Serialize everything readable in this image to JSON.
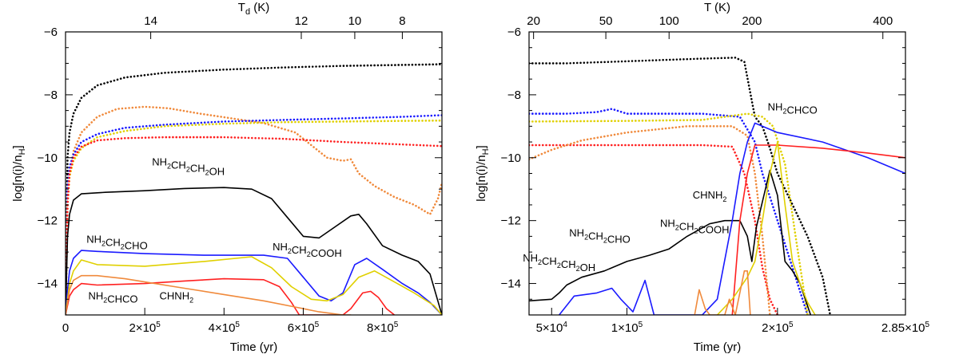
{
  "chart_data": [
    {
      "type": "line",
      "panel": "left",
      "xlabel": "Time (yr)",
      "ylabel": "log[n(i)/n_H]",
      "top_axis_label": "T_d (K)",
      "top_ticks": [
        {
          "x": 215000,
          "label": "14"
        },
        {
          "x": 595000,
          "label": "12"
        },
        {
          "x": 730000,
          "label": "10"
        },
        {
          "x": 850000,
          "label": "8"
        }
      ],
      "xlim": [
        0,
        950000
      ],
      "ylim": [
        -15,
        -6
      ],
      "x_ticks": [
        {
          "x": 0,
          "label": "0"
        },
        {
          "x": 200000,
          "label": "2×10",
          "exp": "5"
        },
        {
          "x": 400000,
          "label": "4×10",
          "exp": "5"
        },
        {
          "x": 600000,
          "label": "6×10",
          "exp": "5"
        },
        {
          "x": 800000,
          "label": "8×10",
          "exp": "5"
        }
      ],
      "y_ticks": [
        {
          "y": -6,
          "label": "−6"
        },
        {
          "y": -8,
          "label": "−8"
        },
        {
          "y": -10,
          "label": "−10"
        },
        {
          "y": -12,
          "label": "−12"
        },
        {
          "y": -14,
          "label": "−14"
        }
      ],
      "series": [
        {
          "color": "#000000",
          "style": "dotted",
          "x": [
            0,
            5000,
            10000,
            20000,
            40000,
            80000,
            150000,
            250000,
            400000,
            550000,
            700000,
            850000,
            950000
          ],
          "y": [
            -15,
            -10,
            -9.2,
            -8.6,
            -8.1,
            -7.7,
            -7.45,
            -7.3,
            -7.2,
            -7.13,
            -7.08,
            -7.05,
            -7.03
          ]
        },
        {
          "color": "#f08a3c",
          "style": "dotted",
          "x": [
            0,
            5000,
            10000,
            20000,
            40000,
            80000,
            130000,
            200000,
            260000,
            340000,
            420000,
            500000,
            580000,
            620000,
            660000,
            700000,
            720000,
            740000,
            780000,
            830000,
            880000,
            920000,
            940000,
            950000
          ],
          "y": [
            -15,
            -11.5,
            -10.6,
            -9.8,
            -9.2,
            -8.7,
            -8.45,
            -8.38,
            -8.43,
            -8.6,
            -8.75,
            -8.9,
            -9.2,
            -9.6,
            -10,
            -10.1,
            -10.05,
            -10.5,
            -10.9,
            -11.25,
            -11.5,
            -11.8,
            -11.3,
            -10.8
          ]
        },
        {
          "color": "#1a1aff",
          "style": "dotted",
          "x": [
            0,
            5000,
            10000,
            20000,
            40000,
            80000,
            150000,
            250000,
            400000,
            550000,
            700000,
            850000,
            950000
          ],
          "y": [
            -15,
            -11,
            -10.3,
            -9.9,
            -9.5,
            -9.25,
            -9.05,
            -8.95,
            -8.85,
            -8.8,
            -8.75,
            -8.7,
            -8.65
          ]
        },
        {
          "color": "#e0d000",
          "style": "dotted",
          "x": [
            0,
            5000,
            10000,
            20000,
            40000,
            80000,
            150000,
            250000,
            400000,
            550000,
            700000,
            850000,
            950000
          ],
          "y": [
            -15,
            -11.5,
            -10.6,
            -10.1,
            -9.7,
            -9.35,
            -9.15,
            -9.0,
            -8.92,
            -8.87,
            -8.85,
            -8.83,
            -8.82
          ]
        },
        {
          "color": "#ff2020",
          "style": "dotted",
          "x": [
            0,
            5000,
            10000,
            20000,
            40000,
            80000,
            150000,
            250000,
            400000,
            550000,
            700000,
            850000,
            950000
          ],
          "y": [
            -15,
            -11.5,
            -10.5,
            -10.0,
            -9.65,
            -9.45,
            -9.38,
            -9.35,
            -9.35,
            -9.4,
            -9.5,
            -9.58,
            -9.63
          ]
        },
        {
          "color": "#000000",
          "style": "solid",
          "x": [
            0,
            5000,
            10000,
            20000,
            40000,
            100000,
            200000,
            300000,
            400000,
            470000,
            520000,
            560000,
            600000,
            640000,
            680000,
            720000,
            740000,
            760000,
            800000,
            850000,
            890000,
            920000,
            950000
          ],
          "y": [
            -15,
            -12.5,
            -11.8,
            -11.35,
            -11.15,
            -11.1,
            -11.05,
            -10.98,
            -10.95,
            -11.0,
            -11.3,
            -11.9,
            -12.5,
            -12.55,
            -12.2,
            -11.85,
            -11.8,
            -12.1,
            -12.8,
            -13.1,
            -13.3,
            -13.7,
            -15
          ]
        },
        {
          "color": "#1a1aff",
          "style": "solid",
          "x": [
            0,
            5000,
            10000,
            20000,
            40000,
            80000,
            200000,
            350000,
            500000,
            560000,
            600000,
            640000,
            670000,
            700000,
            730000,
            760000,
            800000,
            850000,
            890000,
            920000,
            950000
          ],
          "y": [
            -15,
            -14.2,
            -13.6,
            -13.2,
            -12.95,
            -12.98,
            -13.05,
            -13.1,
            -13.1,
            -13.2,
            -13.8,
            -14.4,
            -14.55,
            -14.3,
            -13.4,
            -13.2,
            -13.55,
            -14.0,
            -14.3,
            -14.6,
            -15
          ]
        },
        {
          "color": "#e0d000",
          "style": "solid",
          "x": [
            0,
            5000,
            10000,
            20000,
            40000,
            80000,
            200000,
            350000,
            470000,
            520000,
            570000,
            620000,
            660000,
            700000,
            740000,
            780000,
            830000,
            880000,
            930000,
            950000
          ],
          "y": [
            -15,
            -14.5,
            -14.0,
            -13.6,
            -13.25,
            -13.4,
            -13.45,
            -13.3,
            -13.15,
            -13.5,
            -14.1,
            -14.5,
            -14.55,
            -14.35,
            -13.8,
            -13.6,
            -13.95,
            -14.3,
            -14.7,
            -15
          ]
        },
        {
          "color": "#ff2020",
          "style": "solid",
          "x": [
            0,
            5000,
            10000,
            20000,
            40000,
            80000,
            200000,
            300000,
            400000,
            500000,
            540000,
            570000,
            590000,
            700000,
            720000,
            750000,
            770000,
            790000,
            810000,
            830000
          ],
          "y": [
            -15,
            -14.7,
            -14.4,
            -14.2,
            -14.0,
            -14.05,
            -14.0,
            -13.92,
            -13.85,
            -13.88,
            -14.1,
            -14.6,
            -15,
            -15,
            -14.8,
            -14.3,
            -14.25,
            -14.45,
            -14.8,
            -15
          ]
        },
        {
          "color": "#f08a3c",
          "style": "solid",
          "x": [
            0,
            5000,
            10000,
            20000,
            40000,
            80000,
            150000,
            200000,
            300000,
            400000,
            500000,
            580000,
            640000,
            700000,
            720000
          ],
          "y": [
            -15,
            -14.6,
            -14.2,
            -13.9,
            -13.75,
            -13.75,
            -13.85,
            -13.95,
            -14.15,
            -14.35,
            -14.55,
            -14.75,
            -14.9,
            -15,
            -15
          ]
        }
      ],
      "annotations": [
        {
          "text": "NH₂CH₂CH₂OH",
          "x": 310000,
          "y": -10.25
        },
        {
          "text": "NH₂CH₂CHO",
          "x": 130000,
          "y": -12.7
        },
        {
          "text": "NH₂CH₂COOH",
          "x": 610000,
          "y": -12.95
        },
        {
          "text": "NH₂CHCO",
          "x": 120000,
          "y": -14.5
        },
        {
          "text": "CHNH₂",
          "x": 280000,
          "y": -14.5
        }
      ]
    },
    {
      "type": "line",
      "panel": "right",
      "xlabel": "Time (yr)",
      "ylabel": "log[n(i)/n_H]",
      "top_axis_label": "T (K)",
      "top_ticks": [
        {
          "x": 38000,
          "label": "20"
        },
        {
          "x": 86000,
          "label": "50"
        },
        {
          "x": 128000,
          "label": "100"
        },
        {
          "x": 183000,
          "label": "200"
        },
        {
          "x": 270000,
          "label": "400"
        }
      ],
      "xlim": [
        35000,
        285000
      ],
      "ylim": [
        -15,
        -6
      ],
      "x_ticks": [
        {
          "x": 50000,
          "label": "5×10",
          "exp": "4"
        },
        {
          "x": 100000,
          "label": "1×10",
          "exp": "5"
        },
        {
          "x": 200000,
          "label": "2×10",
          "exp": "5"
        },
        {
          "x": 285000,
          "label": "2.85×10",
          "exp": "5"
        }
      ],
      "y_ticks": [
        {
          "y": -6,
          "label": "−6"
        },
        {
          "y": -8,
          "label": "−8"
        },
        {
          "y": -10,
          "label": "−10"
        },
        {
          "y": -12,
          "label": "−12"
        },
        {
          "y": -14,
          "label": "−14"
        }
      ],
      "series": [
        {
          "color": "#000000",
          "style": "dotted",
          "x": [
            35000,
            60000,
            90000,
            120000,
            150000,
            172000,
            178000,
            185000,
            190000,
            195000,
            200000,
            210000,
            220000,
            230000,
            235000
          ],
          "y": [
            -7.0,
            -7.0,
            -6.95,
            -6.9,
            -6.85,
            -6.82,
            -6.95,
            -8.7,
            -9.0,
            -9.7,
            -10.5,
            -11.5,
            -12.5,
            -13.8,
            -15
          ]
        },
        {
          "color": "#1a1aff",
          "style": "dotted",
          "x": [
            35000,
            60000,
            80000,
            90000,
            100000,
            150000,
            175000,
            185000,
            190000,
            200000,
            210000,
            220000
          ],
          "y": [
            -8.6,
            -8.6,
            -8.55,
            -8.45,
            -8.6,
            -8.6,
            -8.7,
            -9.5,
            -10.5,
            -12.0,
            -13.5,
            -15
          ]
        },
        {
          "color": "#e0d000",
          "style": "dotted",
          "x": [
            35000,
            100000,
            150000,
            180000,
            190000,
            197000,
            205000,
            212000,
            220000
          ],
          "y": [
            -8.85,
            -8.83,
            -8.8,
            -8.6,
            -8.7,
            -9.0,
            -10.2,
            -12.5,
            -15
          ]
        },
        {
          "color": "#ff2020",
          "style": "dotted",
          "x": [
            35000,
            100000,
            150000,
            170000,
            178000,
            185000,
            190000,
            195000,
            200000
          ],
          "y": [
            -9.6,
            -9.6,
            -9.6,
            -9.65,
            -10.5,
            -12.0,
            -13.5,
            -14.5,
            -15
          ]
        },
        {
          "color": "#f08a3c",
          "style": "dotted",
          "x": [
            35000,
            50000,
            70000,
            100000,
            140000,
            170000,
            180000,
            185000,
            190000,
            195000
          ],
          "y": [
            -10.05,
            -9.75,
            -9.45,
            -9.2,
            -9.0,
            -9.0,
            -9.3,
            -10.5,
            -12.5,
            -15
          ]
        },
        {
          "color": "#000000",
          "style": "solid",
          "x": [
            35000,
            50000,
            55000,
            60000,
            70000,
            85000,
            100000,
            115000,
            128000,
            140000,
            155000,
            165000,
            175000,
            180000,
            183000,
            186000,
            190000,
            195000,
            200000,
            205000,
            210000,
            215000,
            222000
          ],
          "y": [
            -14.55,
            -14.5,
            -14.3,
            -14.05,
            -13.8,
            -13.6,
            -13.3,
            -13.1,
            -12.9,
            -12.5,
            -12.1,
            -12.0,
            -12.0,
            -12.5,
            -13.3,
            -12.2,
            -11.4,
            -10.4,
            -11.2,
            -13.3,
            -13.6,
            -14.0,
            -15
          ]
        },
        {
          "color": "#1a1aff",
          "style": "solid",
          "x": [
            55000,
            65000,
            80000,
            90000,
            96000,
            104000,
            112000,
            118000,
            130000,
            150000,
            160000,
            170000,
            175000,
            180000,
            185000,
            200000,
            230000,
            260000,
            285000
          ],
          "y": [
            -15,
            -14.4,
            -14.3,
            -14.15,
            -14.5,
            -14.9,
            -13.9,
            -15,
            -15,
            -15,
            -14.5,
            -12.0,
            -10.5,
            -9.5,
            -8.9,
            -9.2,
            -9.5,
            -10.0,
            -10.5
          ]
        },
        {
          "color": "#ff2020",
          "style": "solid",
          "x": [
            170000,
            175000,
            180000,
            185000,
            200000,
            230000,
            260000,
            285000
          ],
          "y": [
            -15,
            -12.0,
            -10.5,
            -9.6,
            -9.6,
            -9.7,
            -9.85,
            -10.0
          ]
        },
        {
          "color": "#e0d000",
          "style": "solid",
          "x": [
            160000,
            170000,
            180000,
            185000,
            190000,
            195000,
            200000,
            205000,
            210000,
            215000,
            220000,
            225000
          ],
          "y": [
            -15,
            -14.5,
            -13.8,
            -13.3,
            -12.0,
            -10.5,
            -9.5,
            -11.5,
            -13.3,
            -14.0,
            -14.6,
            -15
          ]
        },
        {
          "color": "#f08a3c",
          "style": "solid",
          "x": [
            145000,
            148000,
            152000,
            155000,
            165000,
            168000,
            172000,
            178000,
            180000,
            182000
          ],
          "y": [
            -15,
            -14.2,
            -14.8,
            -15,
            -15,
            -14.5,
            -15,
            -13.6,
            -13.6,
            -15
          ]
        }
      ],
      "annotations": [
        {
          "text": "NH₂CHCO",
          "x": 210000,
          "y": -8.5
        },
        {
          "text": "CHNH₂",
          "x": 155000,
          "y": -11.3
        },
        {
          "text": "NH₂CH₂COOH",
          "x": 145000,
          "y": -12.2
        },
        {
          "text": "NH₂CH₂CHO",
          "x": 82000,
          "y": -12.5
        },
        {
          "text": "NH₂CH₂CH₂OH",
          "x": 55000,
          "y": -13.3
        }
      ]
    }
  ]
}
